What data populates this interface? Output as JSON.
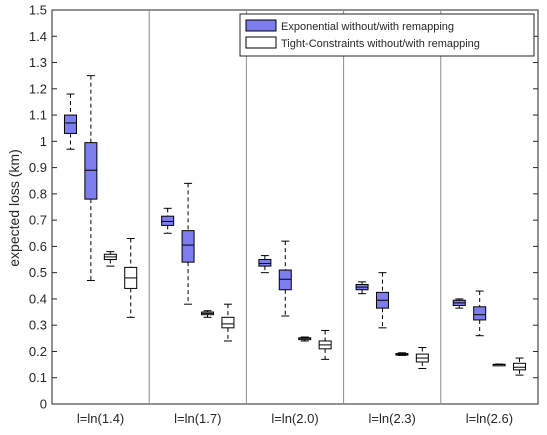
{
  "chart_data": {
    "type": "boxplot",
    "title": "",
    "xlabel": "",
    "ylabel": "expected loss (km)",
    "ylim": [
      0,
      1.5
    ],
    "yticks": [
      0,
      0.1,
      0.2,
      0.3,
      0.4,
      0.5,
      0.6,
      0.7,
      0.8,
      0.9,
      1,
      1.1,
      1.2,
      1.3,
      1.4,
      1.5
    ],
    "ytick_labels": [
      "0",
      "0.1",
      "0.2",
      "0.3",
      "0.4",
      "0.5",
      "0.6",
      "0.7",
      "0.8",
      "0.9",
      "1",
      "1.1",
      "1.2",
      "1.3",
      "1.4",
      "1.5"
    ],
    "grid": false,
    "legend_position": "top-right",
    "groups": [
      "l=ln(1.4)",
      "l=ln(1.7)",
      "l=ln(2.0)",
      "l=ln(2.3)",
      "l=ln(2.6)"
    ],
    "series": [
      {
        "name": "Exponential without/with remapping",
        "color": "#7d7df0",
        "boxes": [
          [
            {
              "whisker_low": 0.97,
              "q1": 1.03,
              "median": 1.07,
              "q3": 1.1,
              "whisker_high": 1.18
            },
            {
              "whisker_low": 0.47,
              "q1": 0.78,
              "median": 0.89,
              "q3": 0.995,
              "whisker_high": 1.25
            }
          ],
          [
            {
              "whisker_low": 0.65,
              "q1": 0.68,
              "median": 0.695,
              "q3": 0.715,
              "whisker_high": 0.745
            },
            {
              "whisker_low": 0.38,
              "q1": 0.54,
              "median": 0.605,
              "q3": 0.66,
              "whisker_high": 0.84
            }
          ],
          [
            {
              "whisker_low": 0.5,
              "q1": 0.525,
              "median": 0.535,
              "q3": 0.55,
              "whisker_high": 0.565
            },
            {
              "whisker_low": 0.335,
              "q1": 0.435,
              "median": 0.475,
              "q3": 0.51,
              "whisker_high": 0.62
            }
          ],
          [
            {
              "whisker_low": 0.42,
              "q1": 0.435,
              "median": 0.445,
              "q3": 0.455,
              "whisker_high": 0.465
            },
            {
              "whisker_low": 0.29,
              "q1": 0.365,
              "median": 0.395,
              "q3": 0.425,
              "whisker_high": 0.5
            }
          ],
          [
            {
              "whisker_low": 0.365,
              "q1": 0.375,
              "median": 0.385,
              "q3": 0.395,
              "whisker_high": 0.4
            },
            {
              "whisker_low": 0.26,
              "q1": 0.32,
              "median": 0.34,
              "q3": 0.37,
              "whisker_high": 0.43
            }
          ]
        ]
      },
      {
        "name": "Tight-Constraints without/with remapping",
        "color": "#ffffff",
        "boxes": [
          [
            {
              "whisker_low": 0.525,
              "q1": 0.55,
              "median": 0.56,
              "q3": 0.57,
              "whisker_high": 0.58
            },
            {
              "whisker_low": 0.33,
              "q1": 0.44,
              "median": 0.48,
              "q3": 0.52,
              "whisker_high": 0.63
            }
          ],
          [
            {
              "whisker_low": 0.33,
              "q1": 0.34,
              "median": 0.345,
              "q3": 0.35,
              "whisker_high": 0.355
            },
            {
              "whisker_low": 0.24,
              "q1": 0.29,
              "median": 0.305,
              "q3": 0.33,
              "whisker_high": 0.38
            }
          ],
          [
            {
              "whisker_low": 0.24,
              "q1": 0.245,
              "median": 0.25,
              "q3": 0.252,
              "whisker_high": 0.255
            },
            {
              "whisker_low": 0.17,
              "q1": 0.21,
              "median": 0.225,
              "q3": 0.24,
              "whisker_high": 0.28
            }
          ],
          [
            {
              "whisker_low": 0.185,
              "q1": 0.188,
              "median": 0.19,
              "q3": 0.192,
              "whisker_high": 0.195
            },
            {
              "whisker_low": 0.135,
              "q1": 0.16,
              "median": 0.175,
              "q3": 0.19,
              "whisker_high": 0.215
            }
          ],
          [
            {
              "whisker_low": 0.147,
              "q1": 0.148,
              "median": 0.15,
              "q3": 0.151,
              "whisker_high": 0.152
            },
            {
              "whisker_low": 0.11,
              "q1": 0.13,
              "median": 0.14,
              "q3": 0.155,
              "whisker_high": 0.175
            }
          ]
        ]
      }
    ]
  }
}
